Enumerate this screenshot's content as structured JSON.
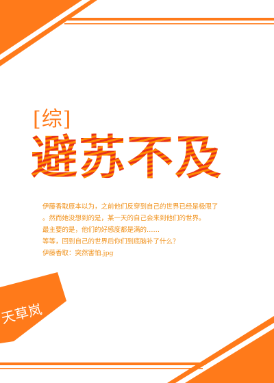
{
  "cover": {
    "subtitle": "[综]",
    "title": "避苏不及",
    "blurb": [
      "伊藤香取原本以为，之前他们反穿到自己的世界已经是极限了",
      "。然而她没想到的是，某一天的自己会来到他们的世界。",
      "最主要的是，他们的好感度都是满的……",
      "等等，回到自己的世界后你们到底脑补了什么？",
      "伊藤香取：突然害怕.jpg"
    ],
    "badge": "天草岚"
  },
  "colors": {
    "accent_orange": "#ff7a1a",
    "accent_red": "#e8321a",
    "blurb_text": "#f09018",
    "background": "#ffffff"
  }
}
